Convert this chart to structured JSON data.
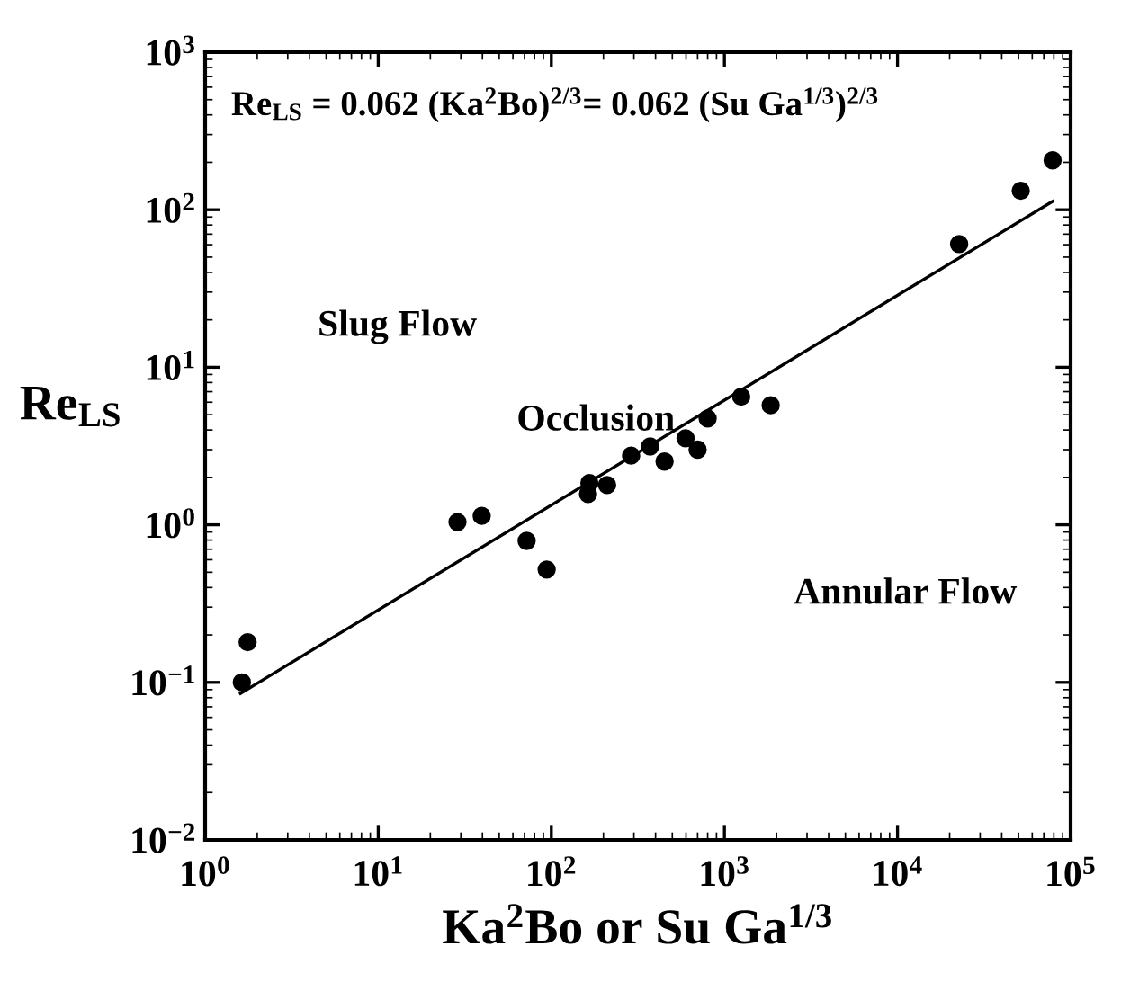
{
  "chart_data": {
    "type": "scatter",
    "xlabel": "Ka$^{2}$Bo or Su Ga$^{1/3}$",
    "ylabel": "Re$_{LS}$",
    "annotations": [
      "Re$_{LS}$ = 0.062 (Ka$^{2}$Bo)$^{2/3}$= 0.062 (Su Ga$^{1/3}$)$^{2/3}$",
      "Slug Flow",
      "Occlusion",
      "Annular Flow"
    ],
    "log": "xy",
    "xlim": [
      1,
      100000
    ],
    "ylim": [
      0.01,
      1000
    ],
    "xticks": [
      {
        "value": 1,
        "label": "10$^{0}$"
      },
      {
        "value": 10,
        "label": "10$^{1}$"
      },
      {
        "value": 100,
        "label": "10$^{2}$"
      },
      {
        "value": 1000,
        "label": "10$^{3}$"
      },
      {
        "value": 10000,
        "label": "10$^{4}$"
      },
      {
        "value": 100000,
        "label": "10$^{5}$"
      }
    ],
    "yticks": [
      {
        "value": 0.01,
        "label": "10$^{−2}$"
      },
      {
        "value": 0.1,
        "label": "10$^{−1}$"
      },
      {
        "value": 1,
        "label": "10$^{0}$"
      },
      {
        "value": 10,
        "label": "10$^{1}$"
      },
      {
        "value": 100,
        "label": "10$^{2}$"
      },
      {
        "value": 1000,
        "label": "10$^{3}$"
      }
    ],
    "grid": false,
    "series": [
      {
        "color": "#000000",
        "marker": "circle",
        "x": [
          1.63,
          1.76,
          28.7,
          39.6,
          72,
          94,
          163,
          166,
          210,
          289,
          372,
          451,
          596,
          700,
          800,
          1250,
          1850,
          22700,
          51500,
          78700
        ],
        "values": [
          0.1,
          0.18,
          1.04,
          1.14,
          0.79,
          0.52,
          1.57,
          1.84,
          1.79,
          2.75,
          3.14,
          2.52,
          3.54,
          3.0,
          4.73,
          6.5,
          5.74,
          60.5,
          132,
          206
        ]
      },
      {
        "type": "line",
        "color": "#000000",
        "line_style": "solid",
        "x": [
          1.6,
          78700
        ],
        "values": [
          0.085,
          113
        ]
      }
    ]
  }
}
